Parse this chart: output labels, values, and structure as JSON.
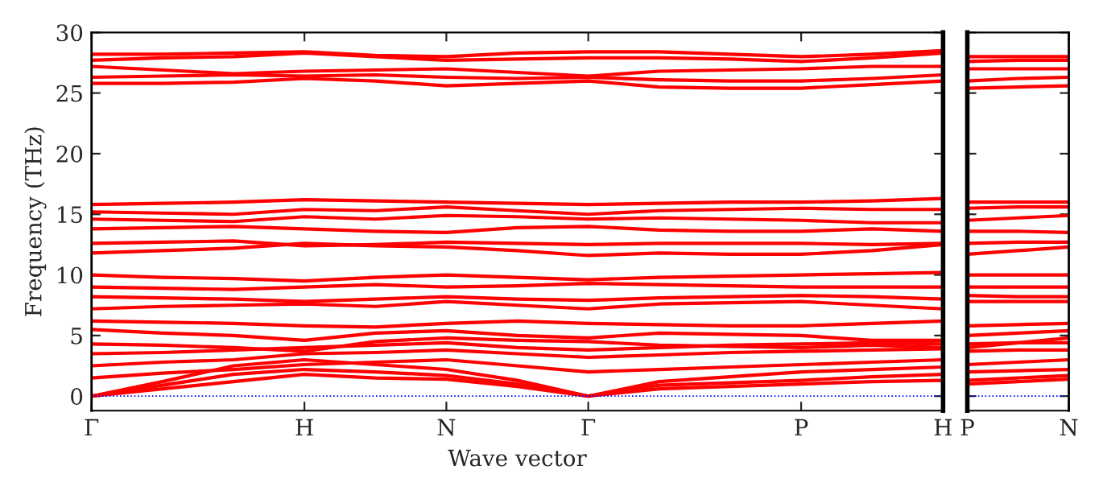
{
  "chart_data": [
    {
      "type": "line",
      "xlabel": "Wave vector",
      "ylabel": "Frequency (THz)",
      "marker": "none",
      "line_style": "solid",
      "grid": false,
      "legend": false,
      "categories": [
        "Γ",
        null,
        null,
        "H",
        null,
        "N",
        null,
        "Γ",
        null,
        null,
        "P",
        null,
        "H"
      ],
      "ylim": [
        -1.2,
        30
      ],
      "yticks": [
        0,
        5,
        10,
        15,
        20,
        25,
        30
      ],
      "ref_lines": [
        {
          "axis": "y",
          "value": 0,
          "color": "#0000ff",
          "line_style": "dotted"
        }
      ],
      "series": [
        {
          "color": "#ff0000",
          "values": [
            0,
            0.6,
            1.2,
            1.8,
            1.5,
            1.4,
            0.8,
            0,
            0.6,
            0.8,
            1.0,
            1.2,
            1.3
          ]
        },
        {
          "color": "#ff0000",
          "values": [
            0,
            0.9,
            1.8,
            2.2,
            2.0,
            1.7,
            1.0,
            0,
            0.9,
            1.1,
            1.3,
            1.6,
            1.8
          ]
        },
        {
          "color": "#ff0000",
          "values": [
            0,
            1.2,
            2.5,
            3.0,
            2.6,
            2.2,
            1.3,
            0,
            1.2,
            1.6,
            2.0,
            2.2,
            2.4
          ]
        },
        {
          "color": "#ff0000",
          "values": [
            1.5,
            1.9,
            2.2,
            2.6,
            2.8,
            3.0,
            2.5,
            2.0,
            2.2,
            2.4,
            2.6,
            2.8,
            3.0
          ]
        },
        {
          "color": "#ff0000",
          "values": [
            2.5,
            2.8,
            3.0,
            3.5,
            3.6,
            3.8,
            3.5,
            3.2,
            3.4,
            3.6,
            3.7,
            3.8,
            3.9
          ]
        },
        {
          "color": "#ff0000",
          "values": [
            3.5,
            3.6,
            3.8,
            4.0,
            4.2,
            4.4,
            4.0,
            3.8,
            4.0,
            4.2,
            4.3,
            4.4,
            4.3
          ]
        },
        {
          "color": "#ff0000",
          "values": [
            4.3,
            4.2,
            4.0,
            3.7,
            4.5,
            4.8,
            4.6,
            4.5,
            4.2,
            4.1,
            4.0,
            4.2,
            4.0
          ]
        },
        {
          "color": "#ff0000",
          "values": [
            5.5,
            5.2,
            5.0,
            4.6,
            5.2,
            5.4,
            5.0,
            4.8,
            5.2,
            5.1,
            5.0,
            4.6,
            4.6
          ]
        },
        {
          "color": "#ff0000",
          "values": [
            6.2,
            6.1,
            6.0,
            5.8,
            5.7,
            6.0,
            6.2,
            6.0,
            5.9,
            5.8,
            5.8,
            6.0,
            6.2
          ]
        },
        {
          "color": "#ff0000",
          "values": [
            7.2,
            7.4,
            7.5,
            7.6,
            7.4,
            7.8,
            7.5,
            7.2,
            7.6,
            7.7,
            7.8,
            7.5,
            7.2
          ]
        },
        {
          "color": "#ff0000",
          "values": [
            8.2,
            8.1,
            8.0,
            7.8,
            8.0,
            8.2,
            8.0,
            7.9,
            8.1,
            8.2,
            8.3,
            8.2,
            8.0
          ]
        },
        {
          "color": "#ff0000",
          "values": [
            9.0,
            8.9,
            8.8,
            9.0,
            9.2,
            9.0,
            9.1,
            9.3,
            9.2,
            9.1,
            9.0,
            9.0,
            9.0
          ]
        },
        {
          "color": "#ff0000",
          "values": [
            10.0,
            9.8,
            9.7,
            9.5,
            9.8,
            10.0,
            9.8,
            9.6,
            9.8,
            9.9,
            10.0,
            10.1,
            10.2
          ]
        },
        {
          "color": "#ff0000",
          "values": [
            11.8,
            12.0,
            12.2,
            12.6,
            12.4,
            12.3,
            12.0,
            11.6,
            11.8,
            11.7,
            11.7,
            12.0,
            12.5
          ]
        },
        {
          "color": "#ff0000",
          "values": [
            12.6,
            12.7,
            12.8,
            12.4,
            12.5,
            12.7,
            12.6,
            12.5,
            12.6,
            12.6,
            12.6,
            12.5,
            12.6
          ]
        },
        {
          "color": "#ff0000",
          "values": [
            13.8,
            13.9,
            14.0,
            13.8,
            13.6,
            13.5,
            13.9,
            14.0,
            13.7,
            13.6,
            13.6,
            13.8,
            13.6
          ]
        },
        {
          "color": "#ff0000",
          "values": [
            14.6,
            14.5,
            14.4,
            14.8,
            14.6,
            14.9,
            14.8,
            14.6,
            14.7,
            14.6,
            14.5,
            14.3,
            14.3
          ]
        },
        {
          "color": "#ff0000",
          "values": [
            15.2,
            15.1,
            15.0,
            15.4,
            15.3,
            15.6,
            15.3,
            15.0,
            15.3,
            15.4,
            15.5,
            15.4,
            15.4
          ]
        },
        {
          "color": "#ff0000",
          "values": [
            15.8,
            15.9,
            16.0,
            16.2,
            16.1,
            16.0,
            15.9,
            15.8,
            15.9,
            16.0,
            16.0,
            16.1,
            16.3
          ]
        },
        {
          "color": "#ff0000",
          "values": [
            25.8,
            25.8,
            25.9,
            26.2,
            26.0,
            25.6,
            25.8,
            26.0,
            25.5,
            25.4,
            25.4,
            25.7,
            26.0
          ]
        },
        {
          "color": "#ff0000",
          "values": [
            26.3,
            26.4,
            26.5,
            26.4,
            26.5,
            26.3,
            26.2,
            26.3,
            26.1,
            26.0,
            26.0,
            26.2,
            26.5
          ]
        },
        {
          "color": "#ff0000",
          "values": [
            27.2,
            26.9,
            26.6,
            26.8,
            26.9,
            27.0,
            26.7,
            26.4,
            26.8,
            26.9,
            27.0,
            27.2,
            27.2
          ]
        },
        {
          "color": "#ff0000",
          "values": [
            27.7,
            27.9,
            28.0,
            28.3,
            28.0,
            27.7,
            27.8,
            27.9,
            27.9,
            27.8,
            27.6,
            27.9,
            28.3
          ]
        },
        {
          "color": "#ff0000",
          "values": [
            28.2,
            28.2,
            28.3,
            28.4,
            28.1,
            28.0,
            28.3,
            28.4,
            28.4,
            28.2,
            28.0,
            28.2,
            28.5
          ]
        }
      ]
    },
    {
      "type": "line",
      "marker": "none",
      "line_style": "solid",
      "grid": false,
      "legend": false,
      "tick_labels": "x",
      "categories": [
        "P",
        null,
        "N"
      ],
      "ylim": [
        -1.2,
        30
      ],
      "yticks": [
        0,
        5,
        10,
        15,
        20,
        25,
        30
      ],
      "ref_lines": [
        {
          "axis": "y",
          "value": 0,
          "color": "#0000ff",
          "line_style": "dotted"
        }
      ],
      "series": [
        {
          "color": "#ff0000",
          "values": [
            1.0,
            1.2,
            1.4
          ]
        },
        {
          "color": "#ff0000",
          "values": [
            1.3,
            1.5,
            1.7
          ]
        },
        {
          "color": "#ff0000",
          "values": [
            2.0,
            2.1,
            2.2
          ]
        },
        {
          "color": "#ff0000",
          "values": [
            2.6,
            2.8,
            3.0
          ]
        },
        {
          "color": "#ff0000",
          "values": [
            3.7,
            3.8,
            3.8
          ]
        },
        {
          "color": "#ff0000",
          "values": [
            4.3,
            4.4,
            4.4
          ]
        },
        {
          "color": "#ff0000",
          "values": [
            4.0,
            4.4,
            4.8
          ]
        },
        {
          "color": "#ff0000",
          "values": [
            5.0,
            5.2,
            5.4
          ]
        },
        {
          "color": "#ff0000",
          "values": [
            5.8,
            5.9,
            6.0
          ]
        },
        {
          "color": "#ff0000",
          "values": [
            7.8,
            7.8,
            7.8
          ]
        },
        {
          "color": "#ff0000",
          "values": [
            8.3,
            8.2,
            8.2
          ]
        },
        {
          "color": "#ff0000",
          "values": [
            9.0,
            9.0,
            9.0
          ]
        },
        {
          "color": "#ff0000",
          "values": [
            10.0,
            10.0,
            10.0
          ]
        },
        {
          "color": "#ff0000",
          "values": [
            11.7,
            12.0,
            12.3
          ]
        },
        {
          "color": "#ff0000",
          "values": [
            12.6,
            12.7,
            12.7
          ]
        },
        {
          "color": "#ff0000",
          "values": [
            13.6,
            13.6,
            13.5
          ]
        },
        {
          "color": "#ff0000",
          "values": [
            14.5,
            14.7,
            14.9
          ]
        },
        {
          "color": "#ff0000",
          "values": [
            15.5,
            15.6,
            15.6
          ]
        },
        {
          "color": "#ff0000",
          "values": [
            16.0,
            16.0,
            16.0
          ]
        },
        {
          "color": "#ff0000",
          "values": [
            25.4,
            25.5,
            25.6
          ]
        },
        {
          "color": "#ff0000",
          "values": [
            26.0,
            26.2,
            26.3
          ]
        },
        {
          "color": "#ff0000",
          "values": [
            27.0,
            27.0,
            27.0
          ]
        },
        {
          "color": "#ff0000",
          "values": [
            27.6,
            27.7,
            27.7
          ]
        },
        {
          "color": "#ff0000",
          "values": [
            28.0,
            28.0,
            28.0
          ]
        }
      ]
    }
  ]
}
